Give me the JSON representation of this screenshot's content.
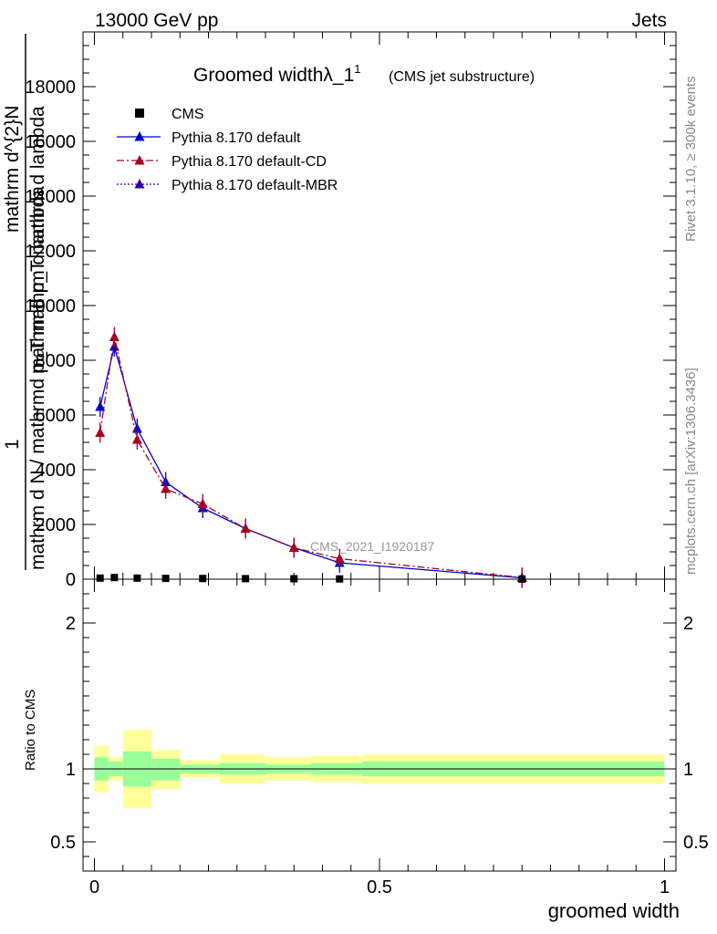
{
  "header": {
    "left": "13000 GeV pp",
    "right": "Jets"
  },
  "chart_data": {
    "type": "line",
    "title": "Groomed width",
    "title_math": "λ_1",
    "title_sup": "1",
    "subtitle": "(CMS jet substructure)",
    "analysis_label": "CMS_2021_I1920187",
    "side_label_top": "Rivet 3.1.10, ≥ 300k events",
    "side_label_bottom": "mcplots.cern.ch [arXiv:1306.3436]",
    "ylabel_numerator": "1",
    "ylabel_denominator": "mathrm d N / mathrmd p_T mathrm d lambda",
    "ylabel_extra": "mathrm d^{2}N",
    "ylabel_extra2": "mathrmd p_T mathrm d lambda",
    "xlabel": "groomed width",
    "ratio_ylabel": "Ratio to CMS",
    "xlim": [
      -0.02,
      1.02
    ],
    "ylim": [
      0,
      20000
    ],
    "ratio_ylim": [
      0.3,
      2.3
    ],
    "x_ticks": [
      0,
      0.5,
      1
    ],
    "x_tick_labels": [
      "0",
      "0.5",
      "1"
    ],
    "y_ticks": [
      0,
      2000,
      4000,
      6000,
      8000,
      10000,
      12000,
      14000,
      16000,
      18000
    ],
    "y_tick_labels": [
      "0",
      "2000",
      "4000",
      "6000",
      "8000",
      "10000",
      "12000",
      "14000",
      "16000",
      "18000"
    ],
    "ratio_ticks": [
      0.5,
      1,
      2
    ],
    "ratio_tick_labels": [
      "0.5",
      "1",
      "2"
    ],
    "legend": [
      {
        "label": "CMS",
        "color": "#000000",
        "style": "square"
      },
      {
        "label": "Pythia 8.170 default",
        "color": "#0000cc",
        "style": "solid"
      },
      {
        "label": "Pythia 8.170 default-CD",
        "color": "#aa0022",
        "style": "dashdot"
      },
      {
        "label": "Pythia 8.170 default-MBR",
        "color": "#3300aa",
        "style": "dotted"
      }
    ],
    "cms": {
      "x": [
        0.01,
        0.035,
        0.075,
        0.125,
        0.19,
        0.265,
        0.35,
        0.43,
        0.75
      ],
      "y": [
        40,
        60,
        40,
        30,
        25,
        20,
        15,
        10,
        5
      ]
    },
    "series": [
      {
        "name": "Pythia 8.170 default",
        "color": "#0000cc",
        "x": [
          0.01,
          0.035,
          0.075,
          0.125,
          0.19,
          0.265,
          0.35,
          0.43,
          0.75
        ],
        "y": [
          6300,
          8500,
          5500,
          3550,
          2600,
          1850,
          1150,
          600,
          50
        ]
      },
      {
        "name": "Pythia 8.170 default-CD",
        "color": "#aa0022",
        "x": [
          0.01,
          0.035,
          0.075,
          0.125,
          0.19,
          0.265,
          0.35,
          0.43,
          0.75
        ],
        "y": [
          5350,
          8850,
          5100,
          3300,
          2750,
          1850,
          1150,
          750,
          60
        ]
      }
    ],
    "ratio_bands": {
      "edges": [
        0,
        0.025,
        0.05,
        0.1,
        0.15,
        0.22,
        0.3,
        0.38,
        0.47,
        1.0
      ],
      "inner_lo": [
        0.92,
        0.95,
        0.88,
        0.92,
        0.97,
        0.96,
        0.97,
        0.96,
        0.95
      ],
      "inner_hi": [
        1.08,
        1.05,
        1.12,
        1.07,
        1.03,
        1.04,
        1.03,
        1.04,
        1.05
      ],
      "outer_lo": [
        0.84,
        0.92,
        0.73,
        0.86,
        0.94,
        0.9,
        0.92,
        0.91,
        0.9
      ],
      "outer_hi": [
        1.16,
        1.08,
        1.27,
        1.13,
        1.06,
        1.1,
        1.08,
        1.09,
        1.1
      ],
      "inner_color": "#99ff99",
      "outer_color": "#ffff99"
    }
  }
}
